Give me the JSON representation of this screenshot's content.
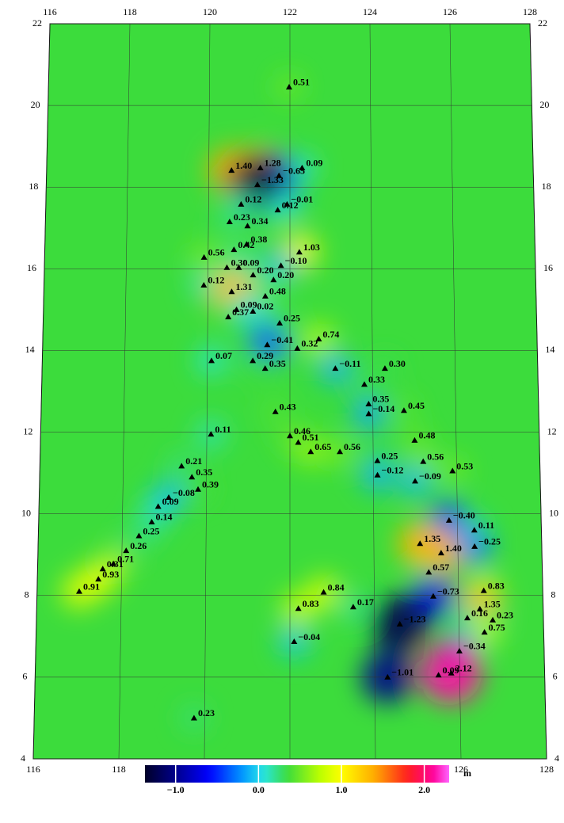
{
  "map": {
    "xlim": [
      116,
      128
    ],
    "ylim": [
      4,
      22
    ],
    "xticks": [
      116,
      118,
      120,
      122,
      124,
      126,
      128
    ],
    "yticks": [
      4,
      6,
      8,
      10,
      12,
      14,
      16,
      18,
      20,
      22
    ],
    "grid": true,
    "background_value": 0.35,
    "stations": {
      "lon": [
        121.98,
        120.56,
        121.27,
        121.73,
        122.3,
        121.2,
        120.8,
        121.93,
        121.7,
        120.52,
        120.96,
        120.63,
        120.94,
        122.23,
        119.9,
        120.46,
        120.75,
        121.78,
        121.1,
        121.6,
        119.9,
        120.58,
        121.4,
        120.7,
        121.1,
        120.5,
        121.75,
        122.7,
        121.45,
        122.18,
        120.1,
        121.1,
        121.4,
        123.1,
        124.3,
        123.8,
        123.9,
        123.9,
        124.75,
        121.65,
        120.1,
        125.0,
        122.0,
        122.2,
        122.5,
        123.2,
        124.1,
        125.2,
        125.9,
        124.1,
        125.0,
        119.4,
        119.65,
        119.8,
        118.85,
        119.1,
        118.7,
        118.4,
        118.1,
        117.8,
        117.55,
        117.45,
        117.0,
        125.8,
        126.4,
        125.1,
        125.6,
        126.4,
        125.3,
        125.4,
        126.6,
        126.5,
        126.8,
        126.2,
        126.6,
        122.8,
        122.2,
        123.5,
        122.1,
        126.0,
        124.3,
        125.5,
        125.8,
        119.75,
        124.6
      ],
      "lat": [
        20.45,
        18.41,
        18.47,
        18.28,
        18.47,
        18.06,
        17.58,
        17.58,
        17.44,
        17.15,
        17.05,
        16.47,
        16.6,
        16.41,
        16.28,
        16.03,
        16.03,
        16.08,
        15.85,
        15.73,
        15.6,
        15.44,
        15.33,
        15.0,
        14.96,
        14.82,
        14.67,
        14.28,
        14.14,
        14.05,
        13.75,
        13.75,
        13.56,
        13.56,
        13.56,
        13.17,
        12.69,
        12.45,
        12.53,
        12.5,
        11.95,
        11.8,
        11.91,
        11.75,
        11.52,
        11.52,
        11.3,
        11.28,
        11.05,
        10.95,
        10.8,
        11.17,
        10.9,
        10.6,
        10.18,
        10.4,
        9.8,
        9.46,
        9.1,
        8.78,
        8.65,
        8.4,
        8.1,
        9.84,
        9.6,
        9.27,
        9.04,
        9.2,
        8.57,
        7.98,
        8.12,
        7.67,
        7.4,
        7.45,
        7.1,
        8.08,
        7.68,
        7.72,
        6.87,
        6.64,
        6.0,
        6.05,
        6.1,
        5.0,
        7.3
      ],
      "values": [
        0.51,
        1.4,
        1.28,
        -0.65,
        0.09,
        -1.33,
        0.12,
        -0.01,
        0.12,
        0.23,
        0.34,
        0.42,
        0.38,
        1.03,
        0.56,
        0.3,
        0.09,
        -0.1,
        0.2,
        0.2,
        0.12,
        1.31,
        0.48,
        0.09,
        0.02,
        0.37,
        0.25,
        0.74,
        -0.41,
        0.32,
        0.07,
        0.29,
        0.35,
        -0.11,
        0.3,
        0.33,
        0.35,
        -0.14,
        0.45,
        0.43,
        0.11,
        0.48,
        0.46,
        0.51,
        0.65,
        0.56,
        0.25,
        0.56,
        0.53,
        -0.12,
        -0.09,
        0.21,
        0.35,
        0.39,
        0.09,
        -0.08,
        0.14,
        0.25,
        0.26,
        0.71,
        0.31,
        0.93,
        0.91,
        -0.4,
        0.11,
        1.35,
        1.4,
        -0.25,
        0.57,
        -0.73,
        0.83,
        1.35,
        0.23,
        0.16,
        0.75,
        0.84,
        0.83,
        0.17,
        -0.04,
        -0.34,
        -1.01,
        0.09,
        2.12,
        0.23,
        -1.23
      ],
      "value_labels": [
        "0.51",
        "1.40",
        "1.28",
        "−0.65",
        "0.09",
        "−1.33",
        "0.12",
        "−0.01",
        "0.12",
        "0.23",
        "0.34",
        "0.42",
        "0.38",
        "1.03",
        "0.56",
        "0.30",
        "0.09",
        "−0.10",
        "0.20",
        "0.20",
        "0.12",
        "1.31",
        "0.48",
        "0.09",
        "0.02",
        "0.37",
        "0.25",
        "0.74",
        "−0.41",
        "0.32",
        "0.07",
        "0.29",
        "0.35",
        "−0.11",
        "0.30",
        "0.33",
        "0.35",
        "−0.14",
        "0.45",
        "0.43",
        "0.11",
        "0.48",
        "0.46",
        "0.51",
        "0.65",
        "0.56",
        "0.25",
        "0.56",
        "0.53",
        "−0.12",
        "−0.09",
        "0.21",
        "0.35",
        "0.39",
        "0.09",
        "−0.08",
        "0.14",
        "0.25",
        "0.26",
        "0.71",
        "0.31",
        "0.93",
        "0.91",
        "−0.40",
        "0.11",
        "1.35",
        "1.40",
        "−0.25",
        "0.57",
        "−0.73",
        "0.83",
        "1.35",
        "0.23",
        "0.16",
        "0.75",
        "0.84",
        "0.83",
        "0.17",
        "−0.04",
        "−0.34",
        "−1.01",
        "0.09",
        "2.12",
        "0.23",
        "−1.23"
      ]
    }
  },
  "colorbar": {
    "lim": [
      -1.37,
      2.3
    ],
    "ticks": [
      {
        "value": -1,
        "label": "−1.0"
      },
      {
        "value": 0,
        "label": "0.0"
      },
      {
        "value": 1,
        "label": "1.0"
      },
      {
        "value": 2,
        "label": "2.0"
      }
    ],
    "unit": "m"
  }
}
